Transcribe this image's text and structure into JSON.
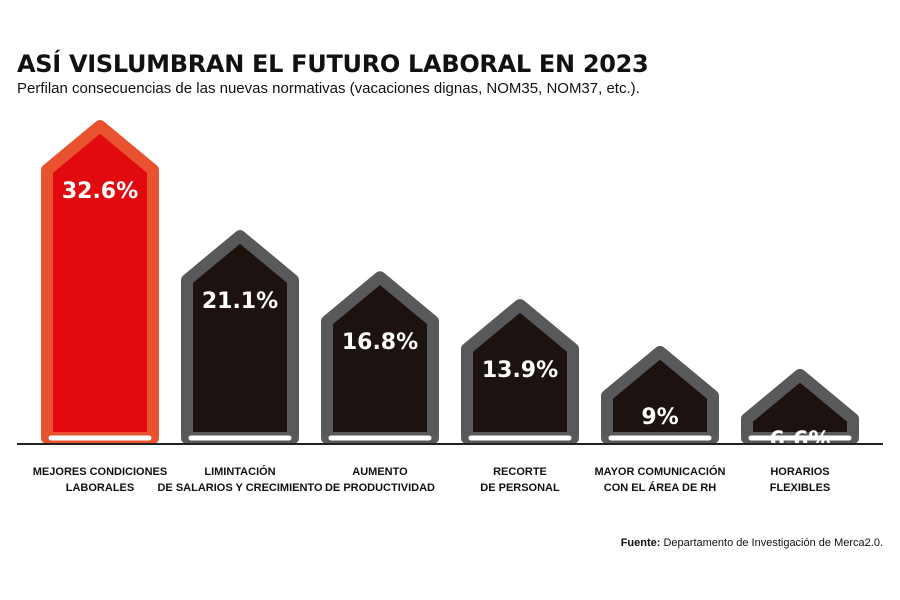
{
  "title": "ASÍ VISLUMBRAN EL FUTURO LABORAL EN 2023",
  "subtitle": "Perfilan consecuencias de las nuevas normativas (vacaciones dignas, NOM35, NOM37, etc.).",
  "source": {
    "label": "Fuente:",
    "text": " Departamento de Investigación de Merca2.0."
  },
  "colors": {
    "highlight_fill": "#e10a0f",
    "highlight_border": "#e8522e",
    "bar_fill": "#1c1311",
    "bar_border": "#58595b",
    "value_text": "#ffffff",
    "baseline": "#222222"
  },
  "chart_data": {
    "type": "bar",
    "title": "ASÍ VISLUMBRAN EL FUTURO LABORAL EN 2023",
    "subtitle": "Perfilan consecuencias de las nuevas normativas (vacaciones dignas, NOM35, NOM37, etc.).",
    "unit": "%",
    "highlight_index": 0,
    "categories": [
      [
        "MEJORES CONDICIONES",
        "LABORALES"
      ],
      [
        "LIMINTACIÓN",
        "DE SALARIOS Y CRECIMIENTO"
      ],
      [
        "AUMENTO",
        "DE PRODUCTIVIDAD"
      ],
      [
        "RECORTE",
        "DE PERSONAL"
      ],
      [
        "MAYOR COMUNICACIÓN",
        "CON EL ÁREA DE RH"
      ],
      [
        "HORARIOS",
        "FLEXIBLES"
      ]
    ],
    "values": [
      32.6,
      21.1,
      16.8,
      13.9,
      9,
      6.6
    ],
    "value_labels": [
      "32.6%",
      "21.1%",
      "16.8%",
      "13.9%",
      "9%",
      "6.6%"
    ]
  }
}
